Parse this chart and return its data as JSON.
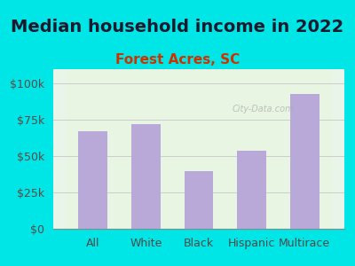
{
  "title": "Median household income in 2022",
  "subtitle": "Forest Acres, SC",
  "categories": [
    "All",
    "White",
    "Black",
    "Hispanic",
    "Multirace"
  ],
  "values": [
    67000,
    72000,
    40000,
    54000,
    93000
  ],
  "bar_color": "#b8a9d9",
  "background_outer": "#00e5e5",
  "background_inner_top": "#e8f5e8",
  "background_inner_bottom": "#f0f8f0",
  "title_color": "#1a1a2e",
  "subtitle_color": "#cc3300",
  "axis_label_color": "#4a4a4a",
  "tick_color": "#5c4a4a",
  "ylim": [
    0,
    110000
  ],
  "yticks": [
    0,
    25000,
    50000,
    75000,
    100000
  ],
  "ytick_labels": [
    "$0",
    "$25k",
    "$50k",
    "$75k",
    "$100k"
  ],
  "title_fontsize": 14,
  "subtitle_fontsize": 11,
  "tick_fontsize": 9,
  "xlabel_fontsize": 9
}
